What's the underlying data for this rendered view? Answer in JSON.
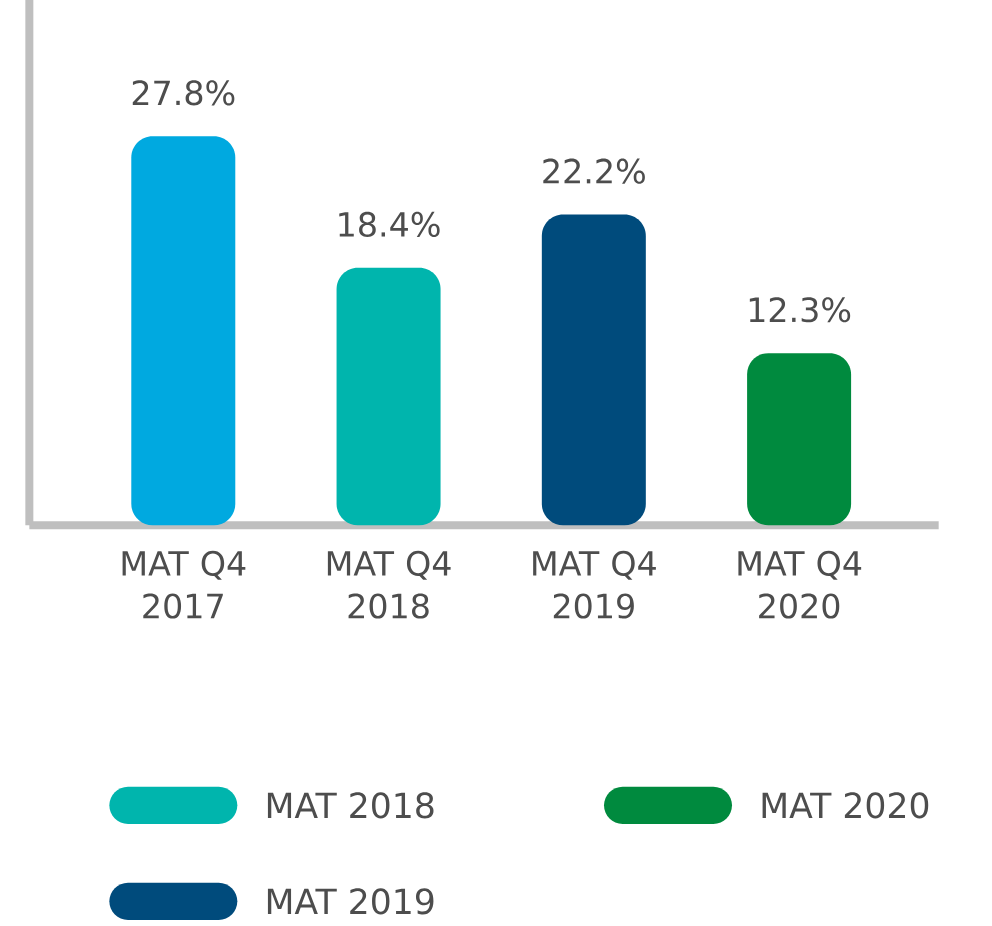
{
  "chart_data": {
    "type": "bar",
    "categories": [
      "MAT Q4 2017",
      "MAT Q4 2018",
      "MAT Q4 2019",
      "MAT Q4 2020"
    ],
    "series": [
      {
        "color": "#00a9e0",
        "values": [
          27.8,
          null,
          null,
          null
        ],
        "value_labels": [
          "27.8%",
          null,
          null,
          null
        ]
      },
      {
        "name": "MAT 2018",
        "color": "#00b5ad",
        "values": [
          null,
          18.4,
          null,
          null
        ],
        "value_labels": [
          null,
          "18.4%",
          null,
          null
        ]
      },
      {
        "name": "MAT 2019",
        "color": "#004b7c",
        "values": [
          null,
          null,
          22.2,
          null
        ],
        "value_labels": [
          null,
          null,
          "22.2%",
          null
        ]
      },
      {
        "name": "MAT 2020",
        "color": "#008a3e",
        "values": [
          null,
          null,
          null,
          12.3
        ],
        "value_labels": [
          null,
          null,
          null,
          "12.3%"
        ]
      }
    ],
    "legend": "bottom"
  }
}
